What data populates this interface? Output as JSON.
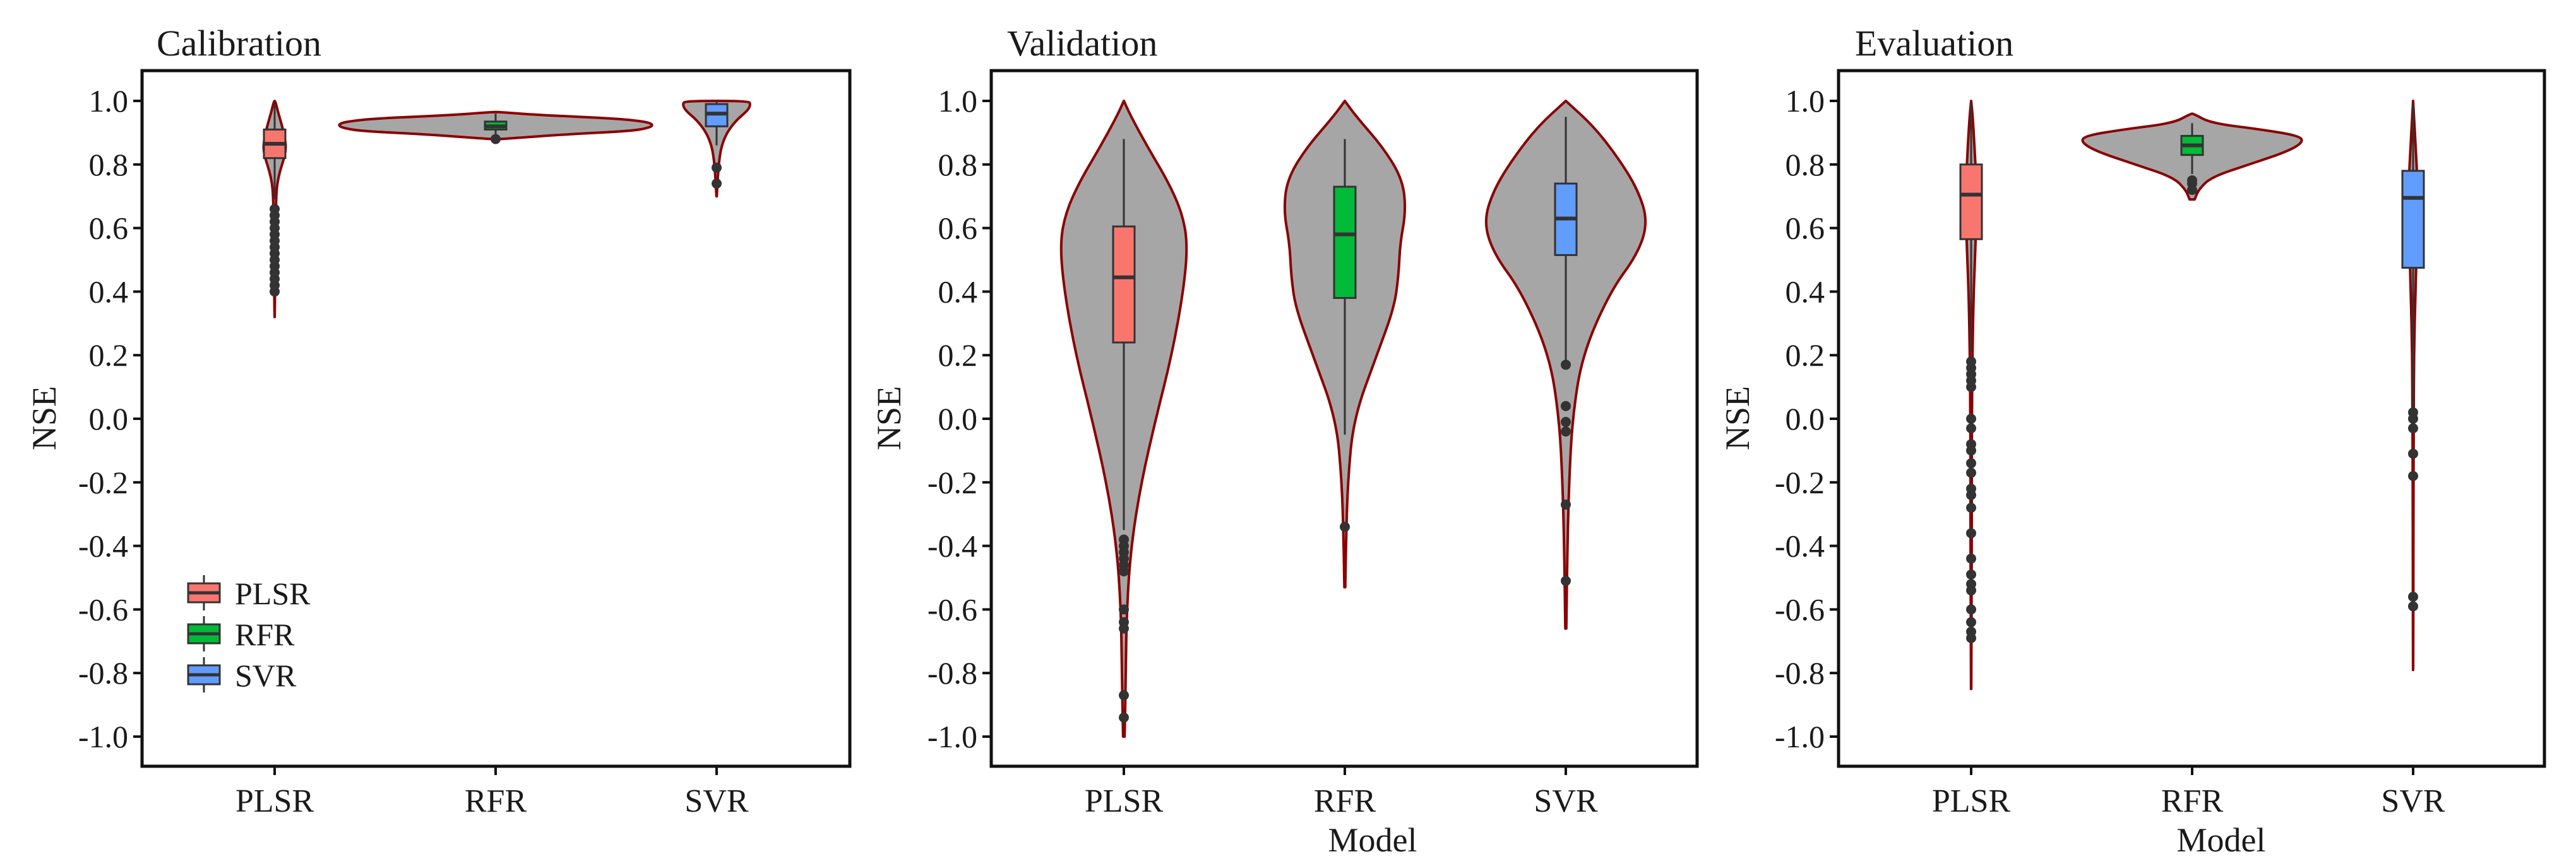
{
  "chart_data": {
    "type": "violin",
    "xlabel": "Model",
    "ylabel": "NSE",
    "categories": [
      "PLSR",
      "RFR",
      "SVR"
    ],
    "yticks": [
      1.0,
      0.8,
      0.6,
      0.4,
      0.2,
      0.0,
      -0.2,
      -0.4,
      -0.6,
      -0.8,
      -1.0
    ],
    "ytick_labels": [
      "1.0",
      "0.8",
      "0.6",
      "0.4",
      "0.2",
      "0.0",
      "-0.2",
      "-0.4",
      "-0.6",
      "-0.8",
      "-1.0"
    ],
    "ylim": [
      -1.1,
      1.1
    ],
    "legend": {
      "position": "bottom-left",
      "panel": "Calibration",
      "entries": [
        {
          "label": "PLSR",
          "color": "#f8766d"
        },
        {
          "label": "RFR",
          "color": "#00ba38"
        },
        {
          "label": "SVR",
          "color": "#619cff"
        }
      ]
    },
    "colors": {
      "violin_fill": "#a6a6a6",
      "violin_outline": "#8b0000",
      "box_outline": "#333333",
      "PLSR": "#f8766d",
      "RFR": "#00ba38",
      "SVR": "#619cff"
    },
    "panels": [
      {
        "title": "Calibration",
        "show_xlabel": false,
        "models": [
          {
            "name": "PLSR",
            "box": {
              "q1": 0.82,
              "median": 0.865,
              "q3": 0.91,
              "whisker_low": 0.69,
              "whisker_high": 0.99
            },
            "outliers": [
              0.4,
              0.42,
              0.44,
              0.46,
              0.48,
              0.5,
              0.52,
              0.54,
              0.56,
              0.58,
              0.6,
              0.62,
              0.64,
              0.66
            ],
            "violin": [
              [
                0.32,
                0.003
              ],
              [
                0.4,
                0.012
              ],
              [
                0.5,
                0.02
              ],
              [
                0.6,
                0.03
              ],
              [
                0.66,
                0.04
              ],
              [
                0.7,
                0.05
              ],
              [
                0.74,
                0.08
              ],
              [
                0.78,
                0.17
              ],
              [
                0.82,
                0.3
              ],
              [
                0.85,
                0.36
              ],
              [
                0.88,
                0.33
              ],
              [
                0.92,
                0.24
              ],
              [
                0.96,
                0.12
              ],
              [
                1.0,
                0.02
              ]
            ]
          },
          {
            "name": "RFR",
            "box": {
              "q1": 0.91,
              "median": 0.92,
              "q3": 0.935,
              "whisker_low": 0.89,
              "whisker_high": 0.96
            },
            "outliers": [
              0.88
            ],
            "violin": [
              [
                0.88,
                0.03
              ],
              [
                0.895,
                0.45
              ],
              [
                0.905,
                0.85
              ],
              [
                0.915,
                0.97
              ],
              [
                0.925,
                1.0
              ],
              [
                0.935,
                0.95
              ],
              [
                0.945,
                0.75
              ],
              [
                0.955,
                0.3
              ],
              [
                0.965,
                0.02
              ]
            ]
          },
          {
            "name": "SVR",
            "box": {
              "q1": 0.92,
              "median": 0.96,
              "q3": 0.99,
              "whisker_low": 0.86,
              "whisker_high": 1.0
            },
            "outliers": [
              0.79,
              0.74
            ],
            "violin": [
              [
                0.7,
                0.003
              ],
              [
                0.74,
                0.015
              ],
              [
                0.78,
                0.03
              ],
              [
                0.82,
                0.05
              ],
              [
                0.86,
                0.09
              ],
              [
                0.9,
                0.18
              ],
              [
                0.94,
                0.35
              ],
              [
                0.97,
                0.55
              ],
              [
                0.99,
                0.6
              ],
              [
                1.0,
                0.55
              ]
            ]
          }
        ]
      },
      {
        "title": "Validation",
        "show_xlabel": true,
        "models": [
          {
            "name": "PLSR",
            "box": {
              "q1": 0.24,
              "median": 0.445,
              "q3": 0.605,
              "whisker_low": -0.35,
              "whisker_high": 0.88
            },
            "outliers": [
              -0.38,
              -0.4,
              -0.42,
              -0.44,
              -0.46,
              -0.48,
              -0.6,
              -0.64,
              -0.66,
              -0.87,
              -0.94
            ],
            "violin": [
              [
                -1.0,
                0.005
              ],
              [
                -0.9,
                0.01
              ],
              [
                -0.8,
                0.013
              ],
              [
                -0.6,
                0.02
              ],
              [
                -0.4,
                0.05
              ],
              [
                -0.2,
                0.12
              ],
              [
                0.0,
                0.22
              ],
              [
                0.2,
                0.33
              ],
              [
                0.4,
                0.41
              ],
              [
                0.55,
                0.44
              ],
              [
                0.65,
                0.4
              ],
              [
                0.75,
                0.3
              ],
              [
                0.85,
                0.17
              ],
              [
                0.95,
                0.05
              ],
              [
                1.0,
                0.0
              ]
            ]
          },
          {
            "name": "RFR",
            "box": {
              "q1": 0.38,
              "median": 0.58,
              "q3": 0.73,
              "whisker_low": -0.05,
              "whisker_high": 0.88
            },
            "outliers": [
              -0.34
            ],
            "violin": [
              [
                -0.53,
                0.003
              ],
              [
                -0.4,
                0.008
              ],
              [
                -0.2,
                0.02
              ],
              [
                0.0,
                0.06
              ],
              [
                0.2,
                0.22
              ],
              [
                0.35,
                0.34
              ],
              [
                0.45,
                0.37
              ],
              [
                0.55,
                0.38
              ],
              [
                0.65,
                0.42
              ],
              [
                0.75,
                0.4
              ],
              [
                0.85,
                0.27
              ],
              [
                0.95,
                0.08
              ],
              [
                1.0,
                0.0
              ]
            ]
          },
          {
            "name": "SVR",
            "box": {
              "q1": 0.515,
              "median": 0.63,
              "q3": 0.74,
              "whisker_low": 0.17,
              "whisker_high": 0.95
            },
            "outliers": [
              0.17,
              0.04,
              -0.01,
              -0.04,
              -0.27,
              -0.51
            ],
            "violin": [
              [
                -0.66,
                0.003
              ],
              [
                -0.4,
                0.01
              ],
              [
                -0.2,
                0.02
              ],
              [
                0.0,
                0.04
              ],
              [
                0.2,
                0.1
              ],
              [
                0.4,
                0.27
              ],
              [
                0.52,
                0.44
              ],
              [
                0.62,
                0.5
              ],
              [
                0.72,
                0.44
              ],
              [
                0.82,
                0.32
              ],
              [
                0.92,
                0.17
              ],
              [
                1.0,
                0.0
              ]
            ]
          }
        ]
      },
      {
        "title": "Evaluation",
        "show_xlabel": true,
        "models": [
          {
            "name": "PLSR",
            "box": {
              "q1": 0.565,
              "median": 0.705,
              "q3": 0.8,
              "whisker_low": 0.21,
              "whisker_high": 0.99
            },
            "outliers": [
              0.18,
              0.16,
              0.14,
              0.12,
              0.1,
              0.0,
              -0.03,
              -0.08,
              -0.1,
              -0.14,
              -0.17,
              -0.22,
              -0.24,
              -0.28,
              -0.36,
              -0.44,
              -0.49,
              -0.52,
              -0.54,
              -0.6,
              -0.64,
              -0.67,
              -0.69
            ],
            "violin": [
              [
                -0.85,
                0.003
              ],
              [
                -0.6,
                0.012
              ],
              [
                -0.4,
                0.02
              ],
              [
                -0.2,
                0.02
              ],
              [
                0.0,
                0.025
              ],
              [
                0.2,
                0.04
              ],
              [
                0.4,
                0.08
              ],
              [
                0.55,
                0.14
              ],
              [
                0.65,
                0.17
              ],
              [
                0.75,
                0.16
              ],
              [
                0.85,
                0.11
              ],
              [
                0.95,
                0.05
              ],
              [
                1.0,
                0.0
              ]
            ]
          },
          {
            "name": "RFR",
            "box": {
              "q1": 0.83,
              "median": 0.86,
              "q3": 0.89,
              "whisker_low": 0.77,
              "whisker_high": 0.93
            },
            "outliers": [
              0.75,
              0.74,
              0.72
            ],
            "violin": [
              [
                0.69,
                0.02
              ],
              [
                0.72,
                0.05
              ],
              [
                0.76,
                0.15
              ],
              [
                0.8,
                0.45
              ],
              [
                0.84,
                0.75
              ],
              [
                0.87,
                0.88
              ],
              [
                0.89,
                0.85
              ],
              [
                0.91,
                0.55
              ],
              [
                0.93,
                0.15
              ],
              [
                0.96,
                0.01
              ]
            ]
          },
          {
            "name": "SVR",
            "box": {
              "q1": 0.475,
              "median": 0.695,
              "q3": 0.78,
              "whisker_low": 0.02,
              "whisker_high": 0.99
            },
            "outliers": [
              0.02,
              0.0,
              -0.03,
              -0.11,
              -0.18,
              -0.56,
              -0.59
            ],
            "violin": [
              [
                -0.79,
                0.003
              ],
              [
                -0.5,
                0.008
              ],
              [
                -0.2,
                0.015
              ],
              [
                0.0,
                0.02
              ],
              [
                0.2,
                0.03
              ],
              [
                0.4,
                0.08
              ],
              [
                0.55,
                0.13
              ],
              [
                0.65,
                0.16
              ],
              [
                0.75,
                0.15
              ],
              [
                0.85,
                0.09
              ],
              [
                0.95,
                0.03
              ],
              [
                1.0,
                0.0
              ]
            ]
          }
        ]
      }
    ]
  }
}
